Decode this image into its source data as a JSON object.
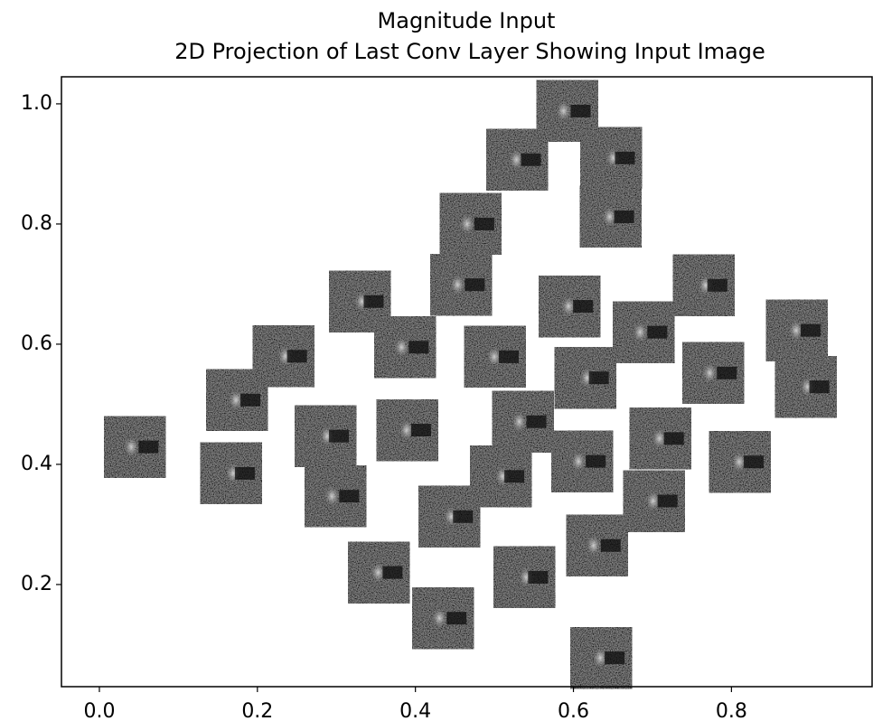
{
  "chart_data": {
    "type": "scatter",
    "title": [
      "Magnitude Input",
      "2D Projection of Last Conv Layer Showing Input Image"
    ],
    "x": [
      0.592,
      0.529,
      0.648,
      0.47,
      0.647,
      0.33,
      0.458,
      0.595,
      0.765,
      0.689,
      0.883,
      0.233,
      0.387,
      0.501,
      0.615,
      0.777,
      0.174,
      0.894,
      0.045,
      0.39,
      0.286,
      0.536,
      0.71,
      0.167,
      0.611,
      0.811,
      0.508,
      0.299,
      0.702,
      0.443,
      0.63,
      0.354,
      0.538,
      0.435,
      0.635
    ],
    "values": [
      0.988,
      0.907,
      0.91,
      0.8,
      0.812,
      0.671,
      0.699,
      0.663,
      0.698,
      0.62,
      0.623,
      0.58,
      0.595,
      0.579,
      0.544,
      0.552,
      0.507,
      0.529,
      0.429,
      0.457,
      0.447,
      0.471,
      0.443,
      0.385,
      0.405,
      0.404,
      0.38,
      0.347,
      0.339,
      0.313,
      0.265,
      0.22,
      0.212,
      0.144,
      0.078
    ],
    "xlim": [
      -0.048,
      0.978
    ],
    "ylim": [
      0.03,
      1.045
    ],
    "xticks": [
      {
        "value": 0,
        "label": "0.0"
      },
      0.2,
      0.4,
      0.6,
      0.8
    ],
    "yticks": [
      0.2,
      0.4,
      0.6,
      0.8,
      {
        "value": 1,
        "label": "1.0"
      }
    ]
  }
}
